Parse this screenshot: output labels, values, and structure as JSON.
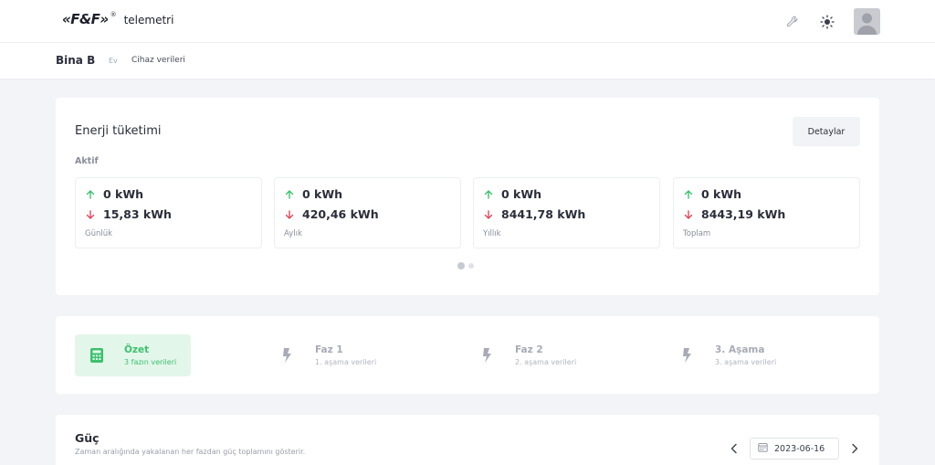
{
  "header": {
    "logo_mark": "«F&F»",
    "logo_reg": "®",
    "logo_text": "telemetri",
    "icons": [
      "wrench-icon",
      "sun-icon",
      "avatar"
    ]
  },
  "breadcrumb": {
    "title": "Bina B",
    "level1": "Ev",
    "level2": "Cihaz verileri"
  },
  "energy": {
    "title": "Enerji tüketimi",
    "details_label": "Detaylar",
    "section_label": "Aktif",
    "stats": [
      {
        "up": "0 kWh",
        "down": "15,83 kWh",
        "label": "Günlük"
      },
      {
        "up": "0 kWh",
        "down": "420,46 kWh",
        "label": "Aylık"
      },
      {
        "up": "0 kWh",
        "down": "8441,78 kWh",
        "label": "Yıllık"
      },
      {
        "up": "0 kWh",
        "down": "8443,19 kWh",
        "label": "Toplam"
      }
    ],
    "pagination": {
      "pages": 2,
      "current": 1
    }
  },
  "phases": [
    {
      "name": "Özet",
      "sub": "3 fazın verileri",
      "icon": "calculator-icon",
      "active": true
    },
    {
      "name": "Faz 1",
      "sub": "1. aşama verileri",
      "icon": "lightning-icon",
      "active": false
    },
    {
      "name": "Faz 2",
      "sub": "2. aşama verileri",
      "icon": "lightning-icon",
      "active": false
    },
    {
      "name": "3. Aşama",
      "sub": "3. aşama verileri",
      "icon": "lightning-icon",
      "active": false
    }
  ],
  "power": {
    "title": "Güç",
    "subtitle": "Zaman aralığında yakalanan her fazdan güç toplamını gösterir.",
    "date": "2023-06-16"
  },
  "colors": {
    "accent_green": "#3cc16e",
    "down_red": "#e0485a",
    "active_bg": "#e3f6ea"
  }
}
